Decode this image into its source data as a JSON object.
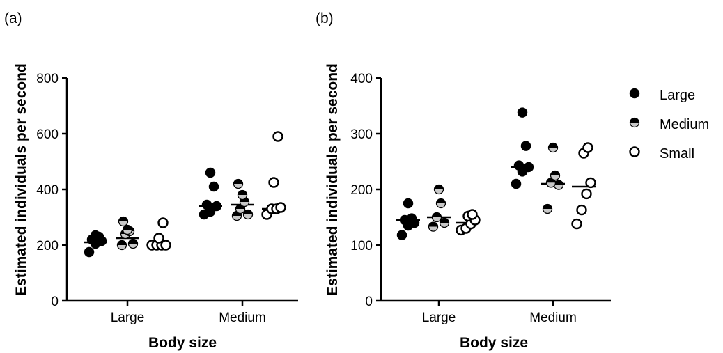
{
  "legend": [
    {
      "name": "Large",
      "marker": "filled"
    },
    {
      "name": "Medium",
      "marker": "half"
    },
    {
      "name": "Small",
      "marker": "open"
    }
  ],
  "colors": {
    "ink": "#000000",
    "half_fill_light": "#c8c8c8",
    "background": "#ffffff"
  },
  "chart_data": [
    {
      "type": "scatter",
      "panel_label": "(a)",
      "xlabel": "Body size",
      "ylabel": "Estimated individuals per second",
      "ylim": [
        0,
        800
      ],
      "yticks": [
        0,
        200,
        400,
        600,
        800
      ],
      "categories": [
        "Large",
        "Medium"
      ],
      "grid": false,
      "series": [
        {
          "name": "Large",
          "marker": "filled",
          "values": {
            "Large": [
              175,
              205,
              215,
              220,
              230,
              235
            ],
            "Medium": [
              310,
              320,
              340,
              345,
              410,
              460
            ]
          },
          "mean": {
            "Large": 210,
            "Medium": 340
          }
        },
        {
          "name": "Medium",
          "marker": "half",
          "values": {
            "Large": [
              200,
              205,
              240,
              250,
              255,
              285
            ],
            "Medium": [
              305,
              310,
              330,
              355,
              380,
              420
            ]
          },
          "mean": {
            "Large": 225,
            "Medium": 345
          }
        },
        {
          "name": "Small",
          "marker": "open",
          "values": {
            "Large": [
              200,
              200,
              200,
              200,
              225,
              280
            ],
            "Medium": [
              310,
              330,
              330,
              335,
              425,
              590
            ]
          },
          "mean": {
            "Large": 205,
            "Medium": 330
          }
        }
      ]
    },
    {
      "type": "scatter",
      "panel_label": "(b)",
      "xlabel": "Body size",
      "ylabel": "Estimated individuals per second",
      "ylim": [
        0,
        400
      ],
      "yticks": [
        0,
        100,
        200,
        300,
        400
      ],
      "categories": [
        "Large",
        "Medium"
      ],
      "grid": false,
      "series": [
        {
          "name": "Large",
          "marker": "filled",
          "values": {
            "Large": [
              118,
              135,
              140,
              145,
              148,
              175
            ],
            "Medium": [
              210,
              232,
              240,
              243,
              278,
              338
            ]
          },
          "mean": {
            "Large": 145,
            "Medium": 240
          }
        },
        {
          "name": "Medium",
          "marker": "half",
          "values": {
            "Large": [
              133,
              140,
              150,
              175,
              200
            ],
            "Medium": [
              165,
              208,
              212,
              225,
              275
            ]
          },
          "mean": {
            "Large": 150,
            "Medium": 210
          }
        },
        {
          "name": "Small",
          "marker": "open",
          "values": {
            "Large": [
              127,
              130,
              138,
              145,
              152,
              155
            ],
            "Medium": [
              138,
              163,
              192,
              212,
              265,
              275
            ]
          },
          "mean": {
            "Large": 140,
            "Medium": 205
          }
        }
      ]
    }
  ]
}
